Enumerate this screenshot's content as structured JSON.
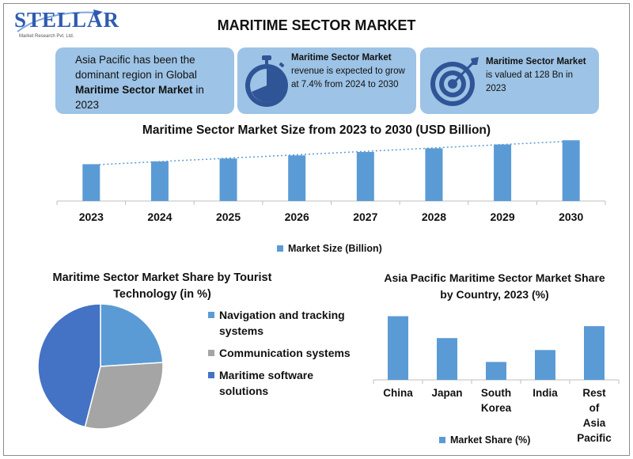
{
  "logo": {
    "name": "STELLAR",
    "subtitle": "Market Research Pvt. Ltd."
  },
  "title": "MARITIME SECTOR MARKET",
  "cards": {
    "region": {
      "pre": "Asia Pacific has been the dominant region in Global ",
      "bold": "Maritime Sector Market",
      "post": " in 2023",
      "icon": "none"
    },
    "growth": {
      "bold": "Maritime Sector Market",
      "post": " revenue is expected to grow at 7.4% from 2024 to 2030",
      "icon": "stopwatch-icon"
    },
    "value": {
      "bold": "Maritime Sector Market",
      "post": " is valued at 128 Bn in 2023",
      "icon": "target-icon"
    }
  },
  "colors": {
    "bar": "#5b9bd5",
    "card": "#9dc3e6",
    "card_icon": "#2f5597",
    "pie_gray": "#a5a5a5",
    "pie_dark": "#4472c4",
    "pie_blue": "#5b9bd5"
  },
  "chart_data": [
    {
      "type": "bar",
      "title": "Maritime Sector Market Size from 2023 to 2030 (USD Billion)",
      "categories": [
        "2023",
        "2024",
        "2025",
        "2026",
        "2027",
        "2028",
        "2029",
        "2030"
      ],
      "series": [
        {
          "name": "Market Size (Billion)",
          "values": [
            128,
            137.5,
            147.7,
            158.6,
            170.4,
            183.0,
            196.5,
            211.1
          ]
        }
      ],
      "trendline": "linear-dotted",
      "legend": "bottom"
    },
    {
      "type": "pie",
      "title": "Maritime Sector Market Share by Tourist Technology (in %)",
      "labels": [
        "Navigation and tracking systems",
        "Communication systems",
        "Maritime software solutions"
      ],
      "values": [
        24,
        30,
        46
      ],
      "legend": "right"
    },
    {
      "type": "bar",
      "title": "Asia Pacific Maritime Sector Market Share by Country, 2023 (%)",
      "categories": [
        "China",
        "Japan",
        "South Korea",
        "India",
        "Rest of Asia Pacific"
      ],
      "series": [
        {
          "name": "Market Share (%)",
          "values": [
            32,
            21,
            9,
            15,
            27
          ]
        }
      ],
      "legend": "bottom"
    }
  ]
}
